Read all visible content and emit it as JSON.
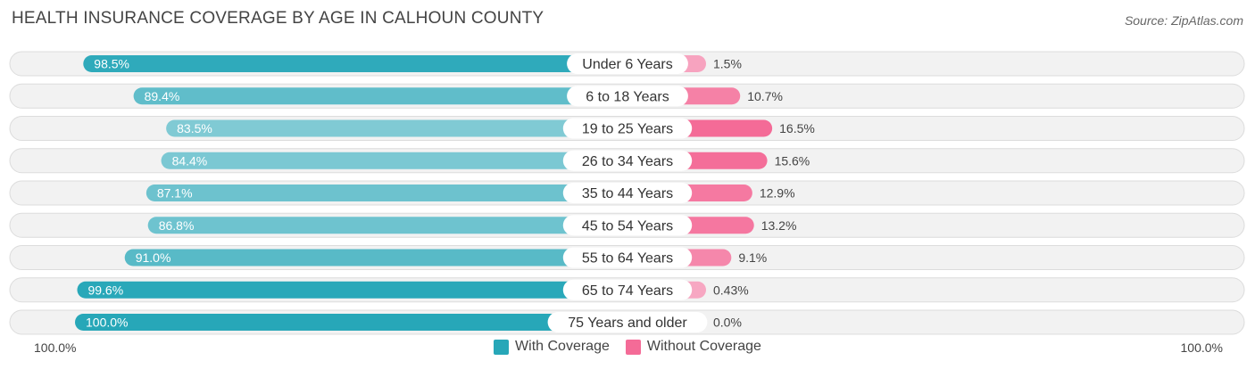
{
  "chart_data": {
    "type": "bar",
    "orientation": "horizontal-diverging",
    "title": "HEALTH INSURANCE COVERAGE BY AGE IN CALHOUN COUNTY",
    "source": "Source: ZipAtlas.com",
    "categories": [
      "Under 6 Years",
      "6 to 18 Years",
      "19 to 25 Years",
      "26 to 34 Years",
      "35 to 44 Years",
      "45 to 54 Years",
      "55 to 64 Years",
      "65 to 74 Years",
      "75 Years and older"
    ],
    "series": [
      {
        "name": "With Coverage",
        "values": [
          98.5,
          89.4,
          83.5,
          84.4,
          87.1,
          86.8,
          91.0,
          99.6,
          100.0
        ],
        "labels": [
          "98.5%",
          "89.4%",
          "83.5%",
          "84.4%",
          "87.1%",
          "86.8%",
          "91.0%",
          "99.6%",
          "100.0%"
        ]
      },
      {
        "name": "Without Coverage",
        "values": [
          1.5,
          10.7,
          16.5,
          15.6,
          12.9,
          13.2,
          9.1,
          0.43,
          0.0
        ],
        "labels": [
          "1.5%",
          "10.7%",
          "16.5%",
          "15.6%",
          "12.9%",
          "13.2%",
          "9.1%",
          "0.43%",
          "0.0%"
        ]
      }
    ],
    "axis": {
      "left_label": "100.0%",
      "right_label": "100.0%",
      "xlim": [
        -100,
        100
      ]
    },
    "legend": {
      "position": "bottom-center"
    },
    "colors": {
      "with_strong": "#27a7b8",
      "with_light": "#83cbd5",
      "without_strong": "#f46b97",
      "without_light": "#f7a9c3",
      "row_bg": "#f2f2f2",
      "row_border": "#dcdcdc"
    }
  }
}
